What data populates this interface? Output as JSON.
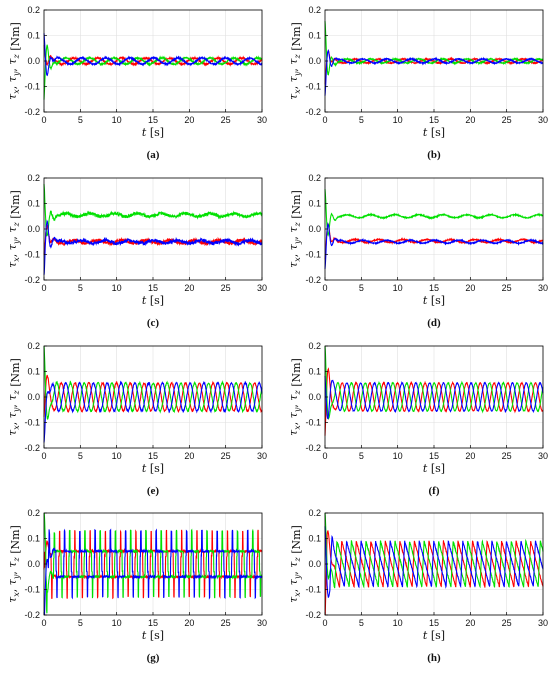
{
  "figure": {
    "colors": {
      "tau_x": "#ff0000",
      "tau_y": "#00e000",
      "tau_z": "#0000ff"
    },
    "yticks": [
      "0.2",
      "0.1",
      "0.0",
      "-0.1",
      "-0.2"
    ],
    "xticks": [
      "0",
      "5",
      "10",
      "15",
      "20",
      "25",
      "30"
    ],
    "xlabel_var": "t",
    "xlabel_unit": "[s]",
    "ylabel_unit": "[Nm]",
    "ylabel_parts": [
      "τ",
      "x",
      ", ",
      "τ",
      "y",
      ", ",
      "τ",
      "z"
    ]
  },
  "chart_data": [
    {
      "caption": "(a)",
      "type": "line",
      "xlim": [
        0,
        30
      ],
      "ylim": [
        -0.2,
        0.2
      ],
      "grid": true,
      "series": [
        {
          "color": "#ff0000",
          "transient": {
            "peak": 0.06,
            "sign": 1
          },
          "steady": {
            "offset": 0.0,
            "amp": 0.012,
            "period": 3.3,
            "phase": 0.0,
            "noise": 0.003
          }
        },
        {
          "color": "#00e000",
          "transient": {
            "peak": 0.16,
            "sign": -1
          },
          "steady": {
            "offset": 0.0,
            "amp": 0.012,
            "period": 3.3,
            "phase": 2.1,
            "noise": 0.003
          }
        },
        {
          "color": "#0000ff",
          "transient": {
            "peak": 0.12,
            "sign": 1
          },
          "steady": {
            "offset": 0.0,
            "amp": 0.012,
            "period": 3.3,
            "phase": 4.2,
            "noise": 0.003
          }
        }
      ]
    },
    {
      "caption": "(b)",
      "type": "line",
      "xlim": [
        0,
        30
      ],
      "ylim": [
        -0.2,
        0.2
      ],
      "grid": true,
      "series": [
        {
          "color": "#ff0000",
          "transient": {
            "peak": 0.09,
            "sign": -1
          },
          "steady": {
            "offset": 0.0,
            "amp": 0.008,
            "period": 3.3,
            "phase": 0.0,
            "noise": 0.002
          }
        },
        {
          "color": "#00e000",
          "transient": {
            "peak": 0.15,
            "sign": 1
          },
          "steady": {
            "offset": 0.0,
            "amp": 0.008,
            "period": 3.3,
            "phase": 2.1,
            "noise": 0.002
          }
        },
        {
          "color": "#0000ff",
          "transient": {
            "peak": 0.13,
            "sign": -1
          },
          "steady": {
            "offset": 0.0,
            "amp": 0.008,
            "period": 3.3,
            "phase": 4.2,
            "noise": 0.002
          }
        }
      ]
    },
    {
      "caption": "(c)",
      "type": "line",
      "xlim": [
        0,
        30
      ],
      "ylim": [
        -0.2,
        0.2
      ],
      "grid": true,
      "series": [
        {
          "color": "#ff0000",
          "transient": {
            "peak": 0.1,
            "sign": -1
          },
          "steady": {
            "offset": -0.05,
            "amp": 0.006,
            "period": 3.3,
            "phase": 0.0,
            "noise": 0.006
          }
        },
        {
          "color": "#00e000",
          "transient": {
            "peak": 0.17,
            "sign": 1
          },
          "steady": {
            "offset": 0.055,
            "amp": 0.006,
            "period": 3.3,
            "phase": 2.1,
            "noise": 0.006
          }
        },
        {
          "color": "#0000ff",
          "transient": {
            "peak": 0.18,
            "sign": -1
          },
          "steady": {
            "offset": -0.05,
            "amp": 0.006,
            "period": 3.3,
            "phase": 4.2,
            "noise": 0.006
          }
        }
      ]
    },
    {
      "caption": "(d)",
      "type": "line",
      "xlim": [
        0,
        30
      ],
      "ylim": [
        -0.2,
        0.2
      ],
      "grid": true,
      "series": [
        {
          "color": "#ff0000",
          "transient": {
            "peak": 0.12,
            "sign": -1
          },
          "steady": {
            "offset": -0.047,
            "amp": 0.006,
            "period": 3.3,
            "phase": 0.0,
            "noise": 0.002
          }
        },
        {
          "color": "#00e000",
          "transient": {
            "peak": 0.15,
            "sign": 1
          },
          "steady": {
            "offset": 0.05,
            "amp": 0.006,
            "period": 3.3,
            "phase": 2.1,
            "noise": 0.002
          }
        },
        {
          "color": "#0000ff",
          "transient": {
            "peak": 0.15,
            "sign": -1
          },
          "steady": {
            "offset": -0.05,
            "amp": 0.006,
            "period": 3.3,
            "phase": 4.2,
            "noise": 0.002
          }
        }
      ]
    },
    {
      "caption": "(e)",
      "type": "line",
      "xlim": [
        0,
        30
      ],
      "ylim": [
        -0.2,
        0.2
      ],
      "grid": true,
      "series": [
        {
          "color": "#ff0000",
          "transient": {
            "peak": 0.08,
            "sign": -1
          },
          "steady": {
            "offset": 0.0,
            "amp": 0.055,
            "period": 1.9,
            "phase": 0.0,
            "noise": 0.003
          }
        },
        {
          "color": "#00e000",
          "transient": {
            "peak": 0.16,
            "sign": 1
          },
          "steady": {
            "offset": 0.0,
            "amp": 0.055,
            "period": 1.9,
            "phase": 2.1,
            "noise": 0.003
          }
        },
        {
          "color": "#0000ff",
          "transient": {
            "peak": 0.13,
            "sign": -1
          },
          "steady": {
            "offset": 0.0,
            "amp": 0.055,
            "period": 1.9,
            "phase": 4.2,
            "noise": 0.003
          }
        }
      ]
    },
    {
      "caption": "(f)",
      "type": "line",
      "xlim": [
        0,
        30
      ],
      "ylim": [
        -0.2,
        0.2
      ],
      "grid": true,
      "series": [
        {
          "color": "#ff0000",
          "transient": {
            "peak": 0.15,
            "sign": -1
          },
          "steady": {
            "offset": 0.0,
            "amp": 0.055,
            "period": 1.9,
            "phase": 0.0,
            "noise": 0.002
          }
        },
        {
          "color": "#00e000",
          "transient": {
            "peak": 0.16,
            "sign": 1
          },
          "steady": {
            "offset": 0.0,
            "amp": 0.055,
            "period": 1.9,
            "phase": 2.1,
            "noise": 0.002
          }
        },
        {
          "color": "#0000ff",
          "transient": {
            "peak": 0.13,
            "sign": 1
          },
          "steady": {
            "offset": 0.0,
            "amp": 0.055,
            "period": 1.9,
            "phase": 4.2,
            "noise": 0.002
          }
        }
      ]
    },
    {
      "caption": "(g)",
      "type": "line",
      "xlim": [
        0,
        30
      ],
      "ylim": [
        -0.2,
        0.2
      ],
      "grid": true,
      "series": [
        {
          "color": "#ff0000",
          "transient": {
            "peak": 0.1,
            "sign": -1
          },
          "steady": {
            "offset": 0.0,
            "amp": 0.05,
            "period": 2.1,
            "phase": 0.0,
            "noise": 0.004,
            "square": true
          }
        },
        {
          "color": "#00e000",
          "transient": {
            "peak": 0.17,
            "sign": 1
          },
          "steady": {
            "offset": 0.0,
            "amp": 0.05,
            "period": 2.1,
            "phase": 2.1,
            "noise": 0.004,
            "square": true
          }
        },
        {
          "color": "#0000ff",
          "transient": {
            "peak": 0.19,
            "sign": -1
          },
          "steady": {
            "offset": 0.0,
            "amp": 0.05,
            "period": 2.1,
            "phase": 4.2,
            "noise": 0.004,
            "square": true
          }
        }
      ]
    },
    {
      "caption": "(h)",
      "type": "line",
      "xlim": [
        0,
        30
      ],
      "ylim": [
        -0.2,
        0.2
      ],
      "grid": true,
      "series": [
        {
          "color": "#ff0000",
          "transient": {
            "peak": 0.14,
            "sign": -1
          },
          "steady": {
            "offset": 0.0,
            "amp": 0.09,
            "period": 2.0,
            "phase": 0.0,
            "noise": 0.003,
            "saw": true
          }
        },
        {
          "color": "#00e000",
          "transient": {
            "peak": 0.16,
            "sign": 1
          },
          "steady": {
            "offset": 0.0,
            "amp": 0.09,
            "period": 2.0,
            "phase": 2.1,
            "noise": 0.003,
            "saw": true
          }
        },
        {
          "color": "#0000ff",
          "transient": {
            "peak": 0.17,
            "sign": 1
          },
          "steady": {
            "offset": 0.0,
            "amp": 0.09,
            "period": 2.0,
            "phase": 4.2,
            "noise": 0.003,
            "saw": true
          }
        }
      ]
    }
  ]
}
